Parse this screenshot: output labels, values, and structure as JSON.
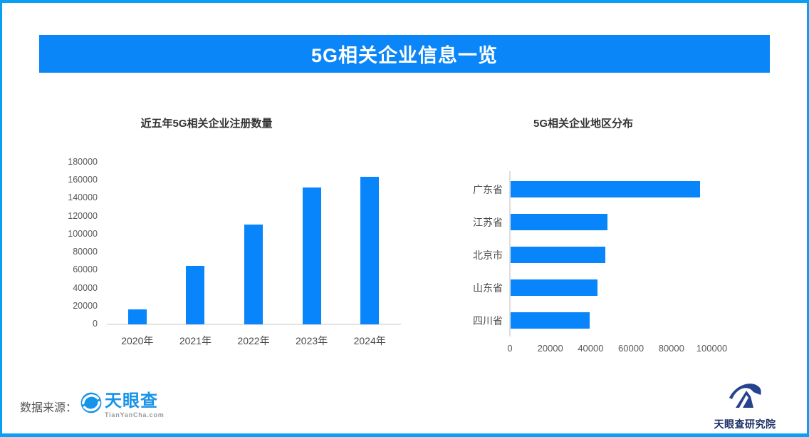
{
  "banner": {
    "title": "5G相关企业信息一览"
  },
  "colors": {
    "banner_blue": "#0a86f8",
    "bar_blue": "#0885fb",
    "border_blue": "#08a0f5",
    "axis_line": "#e3e3e3",
    "tick_text": "#595959",
    "category_text": "#4a4a4a"
  },
  "chart_data": [
    {
      "type": "bar",
      "orientation": "vertical",
      "title": "近五年5G相关企业注册数量",
      "categories": [
        "2020年",
        "2021年",
        "2022年",
        "2023年",
        "2024年"
      ],
      "values": [
        17000,
        65000,
        111000,
        152000,
        164000
      ],
      "xlabel": "",
      "ylabel": "",
      "ylim": [
        0,
        180000
      ],
      "yticks": [
        0,
        20000,
        40000,
        60000,
        80000,
        100000,
        120000,
        140000,
        160000,
        180000
      ],
      "grid": false,
      "bar_color": "#0885fb"
    },
    {
      "type": "bar",
      "orientation": "horizontal",
      "title": "5G相关企业地区分布",
      "categories": [
        "广东省",
        "江苏省",
        "北京市",
        "山东省",
        "四川省"
      ],
      "values": [
        94000,
        48000,
        47000,
        43000,
        39000
      ],
      "xlabel": "",
      "ylabel": "",
      "xlim": [
        0,
        100000
      ],
      "xticks": [
        0,
        20000,
        40000,
        60000,
        80000,
        100000
      ],
      "grid": false,
      "bar_color": "#0885fb"
    }
  ],
  "footer": {
    "source_label": "数据来源：",
    "tyc_logo_text": "天眼查",
    "tyc_logo_subtext": "TianYanCha.com",
    "institute_text": "天眼查研究院"
  }
}
